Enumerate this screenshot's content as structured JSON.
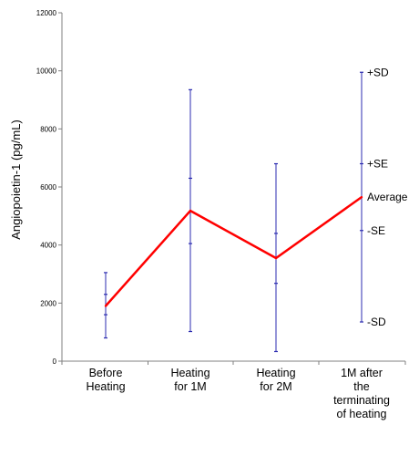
{
  "chart_data": {
    "type": "line",
    "xlabel": "",
    "ylabel": "Angiopoietin-1 (pg/mL)",
    "ylim": [
      0,
      12000
    ],
    "yticks": [
      0,
      2000,
      4000,
      6000,
      8000,
      10000,
      12000
    ],
    "categories": [
      "Before Heating",
      "Heating for 1M",
      "Heating for 2M",
      "1M after the terminating of heating"
    ],
    "category_lines": [
      [
        "Before",
        "Heating"
      ],
      [
        "Heating",
        "for 1M"
      ],
      [
        "Heating",
        "for 2M"
      ],
      [
        "1M after",
        "the",
        "terminating",
        "of heating"
      ]
    ],
    "series": [
      {
        "name": "Average",
        "values": [
          1900,
          5180,
          3550,
          5650
        ],
        "se_upper": [
          2300,
          6300,
          4400,
          6800
        ],
        "se_lower": [
          1600,
          4050,
          2680,
          4500
        ],
        "sd_upper": [
          3050,
          9350,
          6800,
          9950
        ],
        "sd_lower": [
          800,
          1020,
          330,
          1350
        ],
        "color": "#ff0000",
        "errorbar_color": "#2b2bb0"
      }
    ],
    "annotations": [
      "+SD",
      "+SE",
      "Average",
      "-SE",
      "-SD"
    ],
    "grid": false,
    "legend": "none"
  }
}
